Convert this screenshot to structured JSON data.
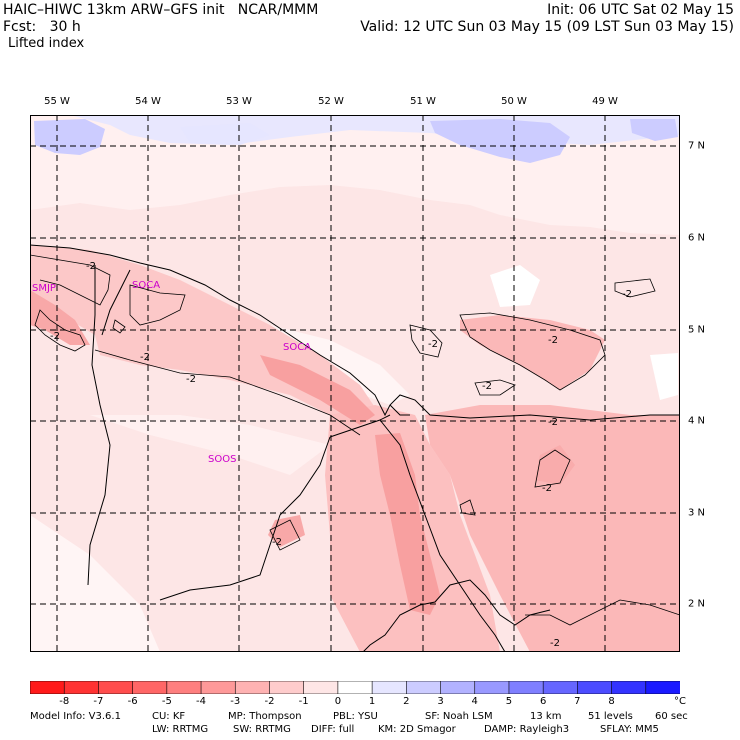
{
  "header": {
    "model_line": "HAIC–HIWC 13km ARW–GFS init   NCAR/MMM",
    "fcst_line": "Fcst:   30 h",
    "field_name": "Lifted index",
    "init_line": "Init: 06 UTC Sat 02 May 15",
    "valid_line": "Valid: 12 UTC Sun 03 May 15 (09 LST Sun 03 May 15)"
  },
  "map": {
    "longitude_labels": [
      "55 W",
      "54 W",
      "53 W",
      "52 W",
      "51 W",
      "50 W",
      "49 W"
    ],
    "latitude_labels": [
      "7 N",
      "6 N",
      "5 N",
      "4 N",
      "3 N",
      "2 N"
    ],
    "station_labels": [
      "SMJP",
      "SOCA",
      "SOCA",
      "SOOS"
    ],
    "contour_labels": [
      "-2",
      "-2",
      "-2",
      "-2",
      "-2",
      "-2",
      "-2",
      "-2",
      "-2",
      "-2",
      "-2",
      "-2",
      "-2"
    ],
    "colors": {
      "station_label": "#cc00cc",
      "background_shade": "#fde6e6",
      "grid_line": "#000000"
    }
  },
  "colorbar": {
    "tick_labels": [
      "-8",
      "-7",
      "-6",
      "-5",
      "-4",
      "-3",
      "-2",
      "-1",
      "0",
      "1",
      "2",
      "3",
      "4",
      "5",
      "6",
      "7",
      "8"
    ],
    "unit": "°C",
    "colors": [
      "#ff1a1a",
      "#ff3333",
      "#ff4d4d",
      "#ff6666",
      "#fe7f7f",
      "#fe9999",
      "#feb2b2",
      "#fecccc",
      "#fee6e6",
      "#ffffff",
      "#e6e6ff",
      "#ccccff",
      "#b2b2ff",
      "#9999ff",
      "#7f7fff",
      "#6666ff",
      "#4c4cff",
      "#3333ff",
      "#1a1aff"
    ]
  },
  "footer": {
    "model_info": "Model Info: V3.6.1",
    "cu": "CU: KF",
    "mp": "MP: Thompson",
    "pbl": "PBL: YSU",
    "sf": "SF: Noah LSM",
    "res": "13 km",
    "levels": "51 levels",
    "dt": "60 sec",
    "lw": "LW: RRTMG",
    "sw": "SW: RRTMG",
    "diff": "DIFF: full",
    "km": "KM: 2D Smagor",
    "damp": "DAMP: Rayleigh3",
    "sflay": "SFLAY: MM5"
  }
}
